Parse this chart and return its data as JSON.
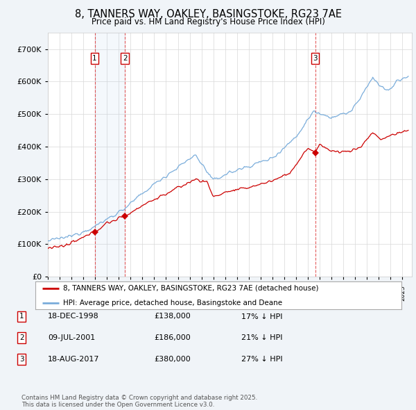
{
  "title": "8, TANNERS WAY, OAKLEY, BASINGSTOKE, RG23 7AE",
  "subtitle": "Price paid vs. HM Land Registry's House Price Index (HPI)",
  "ylim": [
    0,
    750000
  ],
  "yticks": [
    0,
    100000,
    200000,
    300000,
    400000,
    500000,
    600000,
    700000
  ],
  "ytick_labels": [
    "£0",
    "£100K",
    "£200K",
    "£300K",
    "£400K",
    "£500K",
    "£600K",
    "£700K"
  ],
  "bg_color": "#f0f4f8",
  "plot_bg_color": "#ffffff",
  "red_line_color": "#cc0000",
  "blue_line_color": "#7aaddb",
  "transaction_dates": [
    1998.96,
    2001.52,
    2017.62
  ],
  "transaction_prices": [
    138000,
    186000,
    380000
  ],
  "transaction_labels": [
    "1",
    "2",
    "3"
  ],
  "legend_red": "8, TANNERS WAY, OAKLEY, BASINGSTOKE, RG23 7AE (detached house)",
  "legend_blue": "HPI: Average price, detached house, Basingstoke and Deane",
  "table_rows": [
    [
      "1",
      "18-DEC-1998",
      "£138,000",
      "17% ↓ HPI"
    ],
    [
      "2",
      "09-JUL-2001",
      "£186,000",
      "21% ↓ HPI"
    ],
    [
      "3",
      "18-AUG-2017",
      "£380,000",
      "27% ↓ HPI"
    ]
  ],
  "footer": "Contains HM Land Registry data © Crown copyright and database right 2025.\nThis data is licensed under the Open Government Licence v3.0.",
  "xmin": 1995.0,
  "xmax": 2025.8
}
